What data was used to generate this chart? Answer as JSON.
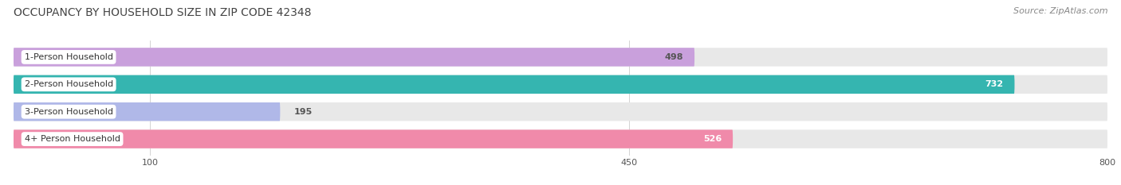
{
  "title": "OCCUPANCY BY HOUSEHOLD SIZE IN ZIP CODE 42348",
  "source": "Source: ZipAtlas.com",
  "categories": [
    "1-Person Household",
    "2-Person Household",
    "3-Person Household",
    "4+ Person Household"
  ],
  "values": [
    498,
    732,
    195,
    526
  ],
  "bar_colors": [
    "#c9a0dc",
    "#35b5b0",
    "#b0b8e8",
    "#f08aaa"
  ],
  "bg_bar_color": "#e8e8e8",
  "xlim": [
    0,
    800
  ],
  "xticks": [
    100,
    450,
    800
  ],
  "value_inside_color": [
    "#555555",
    "#ffffff",
    "#555555",
    "#ffffff"
  ],
  "background_color": "#ffffff",
  "title_fontsize": 10,
  "source_fontsize": 8,
  "bar_height": 0.68,
  "bar_gap": 0.18
}
